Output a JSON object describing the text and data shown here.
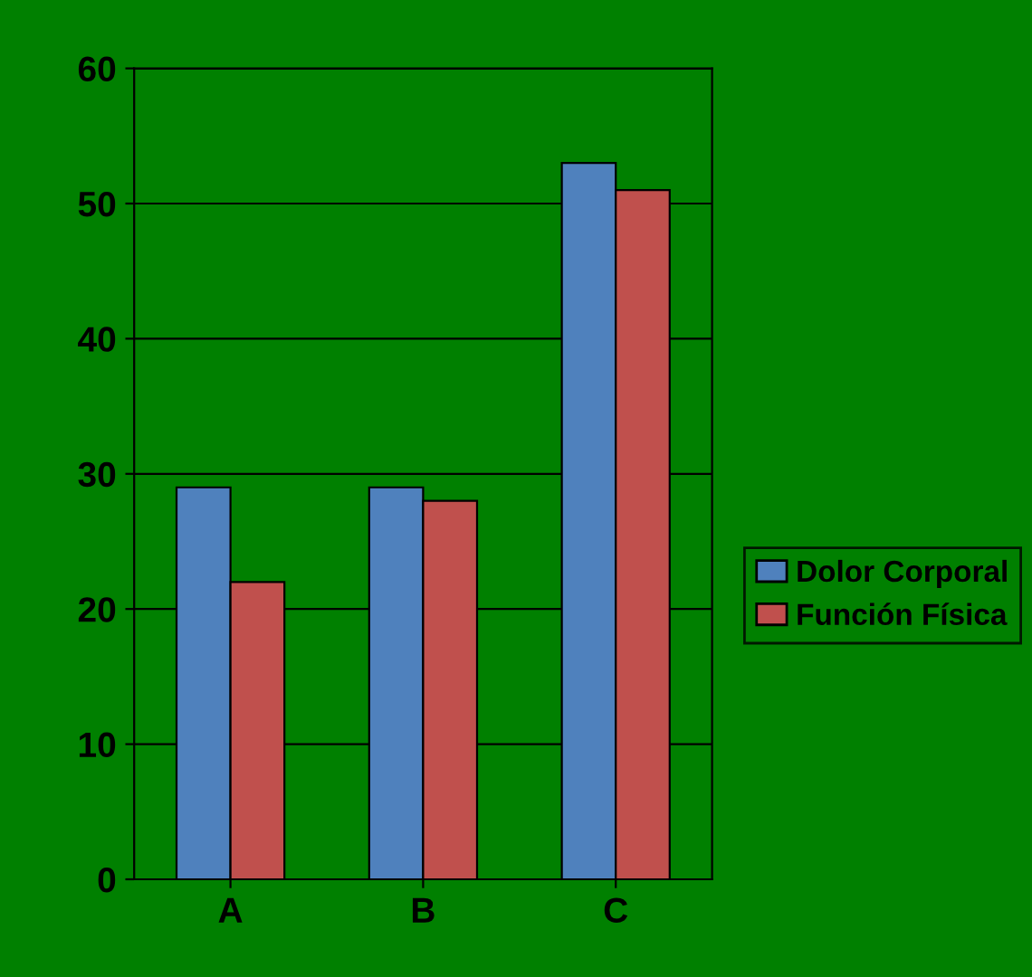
{
  "chart_data": {
    "type": "bar",
    "categories": [
      "A",
      "B",
      "C"
    ],
    "series": [
      {
        "name": "Dolor Corporal",
        "color": "#4f81bd",
        "values": [
          29,
          29,
          53
        ]
      },
      {
        "name": "Función Física",
        "color": "#c0504d",
        "values": [
          22,
          28,
          51
        ]
      }
    ],
    "ylim": [
      0,
      60
    ],
    "yticks": [
      0,
      10,
      20,
      30,
      40,
      50,
      60
    ],
    "grid": "y",
    "legend": "right"
  }
}
